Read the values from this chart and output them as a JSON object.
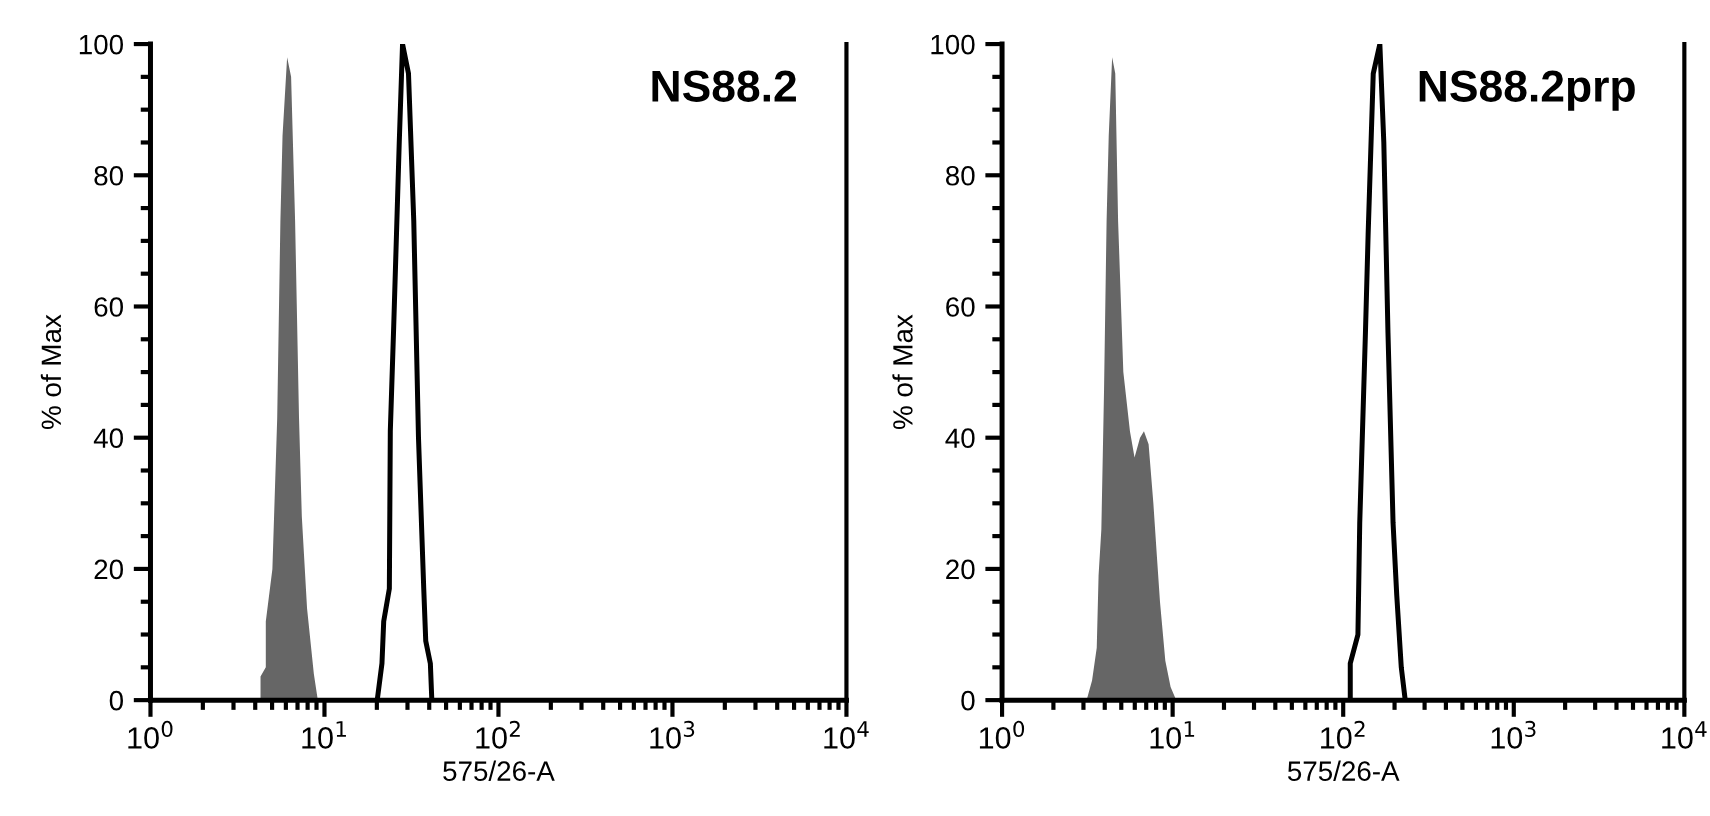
{
  "chart_data": [
    {
      "type": "area",
      "title": "NS88.2",
      "xlabel": "575/26-A",
      "ylabel": "% of Max",
      "log": "x",
      "legend": false,
      "grid": false,
      "xlim": [
        1,
        10000
      ],
      "ylim": [
        0,
        100
      ],
      "xticks": [
        {
          "value": 1,
          "label": "10$^{0}$"
        },
        {
          "value": 10,
          "label": "10$^{1}$"
        },
        {
          "value": 100,
          "label": "10$^{2}$"
        },
        {
          "value": 1000,
          "label": "10$^{3}$"
        },
        {
          "value": 10000,
          "label": "10$^{4}$"
        }
      ],
      "yticks": [
        0,
        20,
        40,
        60,
        80,
        100
      ],
      "series": [
        {
          "color": "#666666",
          "x": [
            4.29,
            4.29,
            4.6,
            4.6,
            5.02,
            5.35,
            5.58,
            5.74,
            6.1,
            6.43,
            6.78,
            7.14,
            7.41,
            7.94,
            8.69,
            9.16
          ],
          "values": [
            0,
            3.6,
            5,
            12,
            20,
            43,
            73,
            86,
            98,
            95,
            73,
            43,
            28,
            14,
            4,
            0
          ]
        },
        {
          "type": "line",
          "color": "#000000",
          "x": [
            20.1,
            21.4,
            21.9,
            23.6,
            23.9,
            25.0,
            26.9,
            28.1,
            30.4,
            32.6,
            34.7,
            37.2,
            38.2,
            40.6,
            41.4
          ],
          "values": [
            0,
            5.6,
            12,
            17,
            41,
            57,
            85,
            100,
            95.5,
            73,
            40,
            17,
            9,
            5.6,
            0
          ]
        }
      ]
    },
    {
      "type": "area",
      "title": "NS88.2prp",
      "xlabel": "575/26-A",
      "ylabel": "% of Max",
      "log": "x",
      "legend": false,
      "grid": false,
      "xlim": [
        1,
        10000
      ],
      "ylim": [
        0,
        100
      ],
      "xticks": [
        {
          "value": 1,
          "label": "10$^{0}$"
        },
        {
          "value": 10,
          "label": "10$^{1}$"
        },
        {
          "value": 100,
          "label": "10$^{2}$"
        },
        {
          "value": 1000,
          "label": "10$^{3}$"
        },
        {
          "value": 10000,
          "label": "10$^{4}$"
        }
      ],
      "yticks": [
        0,
        20,
        40,
        60,
        80,
        100
      ],
      "series": [
        {
          "color": "#666666",
          "x": [
            3.13,
            3.37,
            3.59,
            3.68,
            3.82,
            3.96,
            4.1,
            4.22,
            4.42,
            4.61,
            4.79,
            5.14,
            5.62,
            5.98,
            6.44,
            6.79,
            7.23,
            7.71,
            8.13,
            8.43,
            9.06,
            9.73,
            10.5
          ],
          "values": [
            0,
            3,
            8,
            19,
            26,
            47,
            73,
            86,
            98,
            95.5,
            73,
            50,
            41,
            37,
            40,
            41,
            39,
            30,
            21,
            15,
            6,
            2,
            0
          ]
        },
        {
          "type": "line",
          "color": "#000000",
          "x": [
            110,
            110,
            122,
            125,
            135,
            140,
            150,
            164,
            173,
            183,
            196,
            206,
            219,
            231
          ],
          "values": [
            0,
            5.6,
            10,
            27,
            56,
            71,
            95.5,
            100,
            85,
            56,
            27,
            16,
            5,
            0
          ]
        }
      ]
    }
  ]
}
